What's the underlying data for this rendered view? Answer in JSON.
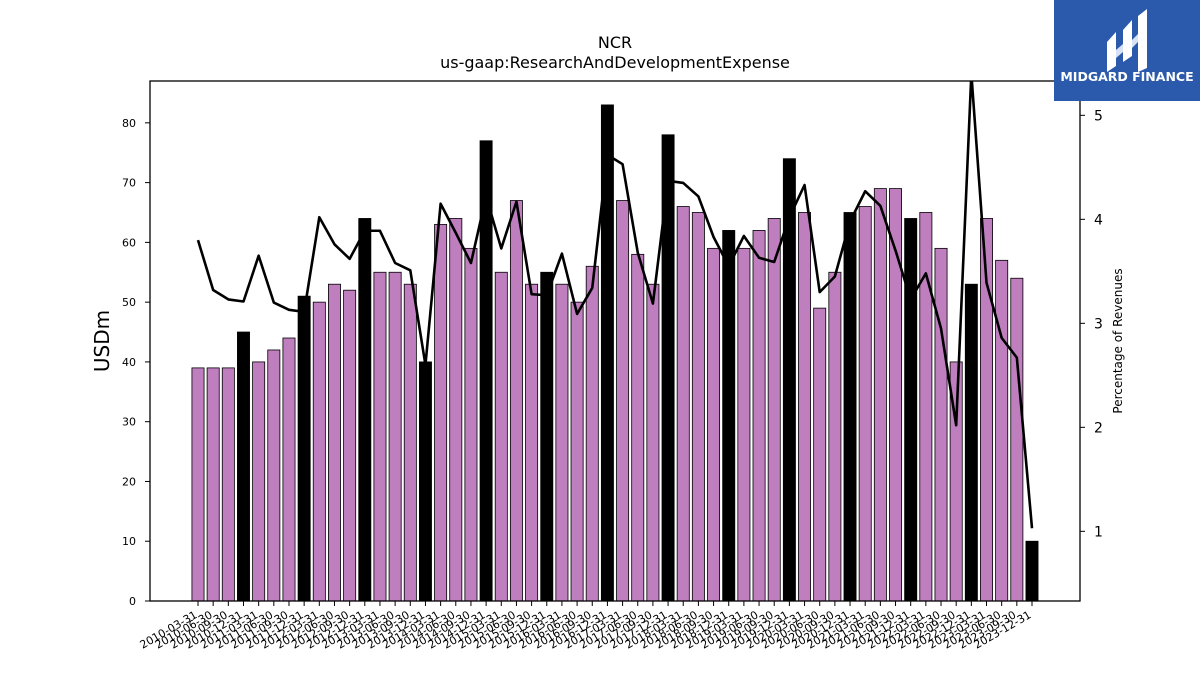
{
  "chart_data": {
    "type": "bar",
    "title": "NCR",
    "subtitle": "us-gaap:ResearchAndDevelopmentExpense",
    "ylabel": "USDm",
    "ylabel_right": "Percentage of Revenues",
    "ylim": [
      0,
      87
    ],
    "yticks": [
      0,
      10,
      20,
      30,
      40,
      50,
      60,
      70,
      80
    ],
    "ylim_right": [
      0.33,
      5.33
    ],
    "yticks_right": [
      1,
      2,
      3,
      4,
      5
    ],
    "grid": false,
    "legend": "none",
    "categories": [
      "2010-03-31",
      "2010-06-30",
      "2010-09-30",
      "2010-12-31",
      "2011-03-31",
      "2011-06-30",
      "2011-09-30",
      "2011-12-31",
      "2012-03-31",
      "2012-06-30",
      "2012-09-30",
      "2012-12-31",
      "2013-03-31",
      "2013-06-30",
      "2013-09-30",
      "2013-12-31",
      "2014-03-31",
      "2014-06-30",
      "2014-09-30",
      "2014-12-31",
      "2015-03-31",
      "2015-06-30",
      "2015-09-30",
      "2015-12-31",
      "2016-03-31",
      "2016-06-30",
      "2016-09-30",
      "2016-12-31",
      "2017-03-31",
      "2017-06-30",
      "2017-09-30",
      "2017-12-31",
      "2018-03-31",
      "2018-06-30",
      "2018-09-30",
      "2018-12-31",
      "2019-03-31",
      "2019-06-30",
      "2019-09-30",
      "2019-12-31",
      "2020-03-31",
      "2020-06-30",
      "2020-09-30",
      "2020-12-31",
      "2021-03-31",
      "2021-06-30",
      "2021-09-30",
      "2021-12-31",
      "2022-03-31",
      "2022-06-30",
      "2022-09-30",
      "2022-12-31",
      "2023-03-31",
      "2023-06-30",
      "2023-09-30",
      "2023-12-31"
    ],
    "series": [
      {
        "axis": "left",
        "kind": "bar",
        "values": [
          39,
          39,
          39,
          45,
          40,
          42,
          44,
          51,
          50,
          53,
          52,
          64,
          55,
          55,
          53,
          40,
          63,
          64,
          59,
          77,
          55,
          67,
          53,
          55,
          53,
          50,
          56,
          83,
          67,
          58,
          53,
          78,
          66,
          65,
          59,
          62,
          59,
          62,
          64,
          74,
          65,
          49,
          55,
          65,
          66,
          69,
          69,
          64,
          65,
          59,
          40,
          53,
          64,
          57,
          54,
          10
        ],
        "annual": [
          false,
          false,
          false,
          true,
          false,
          false,
          false,
          true,
          false,
          false,
          false,
          true,
          false,
          false,
          false,
          true,
          false,
          false,
          false,
          true,
          false,
          false,
          false,
          true,
          false,
          false,
          false,
          true,
          false,
          false,
          false,
          true,
          false,
          false,
          false,
          true,
          false,
          false,
          false,
          true,
          false,
          false,
          false,
          true,
          false,
          false,
          false,
          true,
          false,
          false,
          false,
          true,
          false,
          false,
          false,
          true
        ],
        "colors": {
          "quarter": "#bf7fbf",
          "annual": "#000000"
        }
      },
      {
        "axis": "right",
        "kind": "line",
        "color": "#000000",
        "values": [
          3.8,
          3.32,
          3.23,
          3.21,
          3.65,
          3.2,
          3.13,
          3.11,
          4.02,
          3.76,
          3.62,
          3.89,
          3.89,
          3.58,
          3.51,
          2.6,
          4.15,
          3.87,
          3.58,
          4.22,
          3.72,
          4.17,
          3.28,
          3.27,
          3.67,
          3.09,
          3.34,
          4.62,
          4.53,
          3.68,
          3.19,
          4.37,
          4.35,
          4.22,
          3.83,
          3.55,
          3.84,
          3.63,
          3.59,
          4.02,
          4.33,
          3.3,
          3.45,
          3.98,
          4.27,
          4.13,
          3.7,
          3.23,
          3.48,
          2.95,
          2.02,
          5.4,
          3.39,
          2.86,
          2.67,
          1.03
        ]
      }
    ]
  },
  "logo": {
    "text": "MIDGARD FINANCE",
    "background": "#2b5aac"
  }
}
